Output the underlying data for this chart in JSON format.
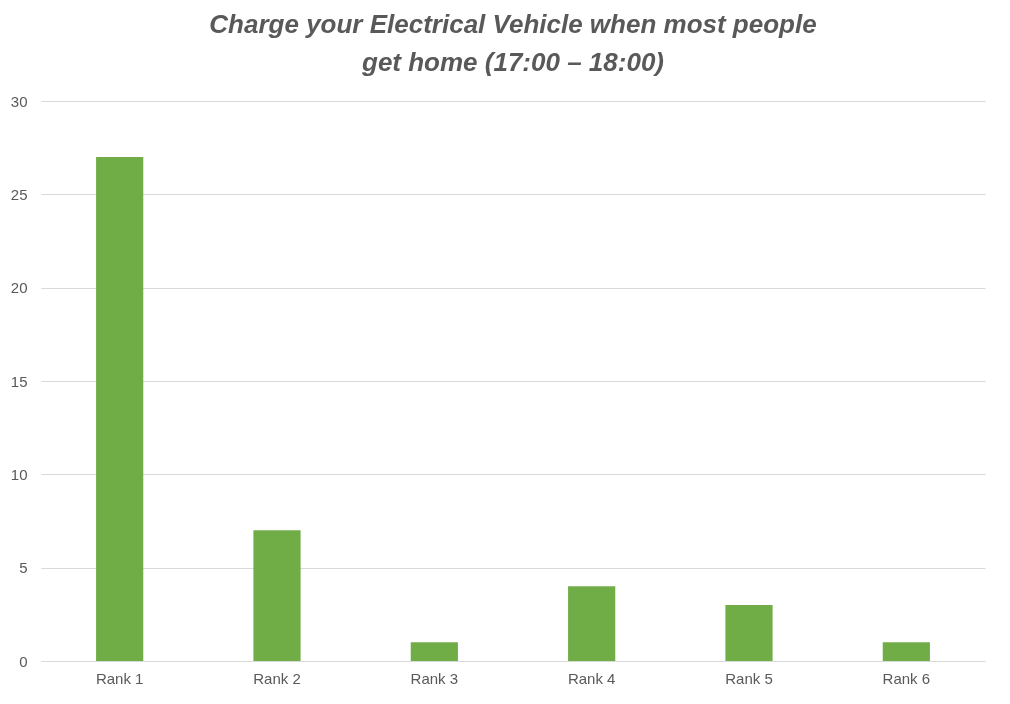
{
  "chart_data": {
    "type": "bar",
    "title": "Charge your Electrical Vehicle when most people get home (17:00 – 18:00)",
    "categories": [
      "Rank 1",
      "Rank 2",
      "Rank 3",
      "Rank 4",
      "Rank 5",
      "Rank 6"
    ],
    "values": [
      27,
      7,
      1,
      4,
      3,
      1
    ],
    "color": "#70ad47",
    "ylim": [
      0,
      30
    ],
    "yticks": [
      0,
      5,
      10,
      15,
      20,
      25,
      30
    ],
    "grid": "y"
  }
}
